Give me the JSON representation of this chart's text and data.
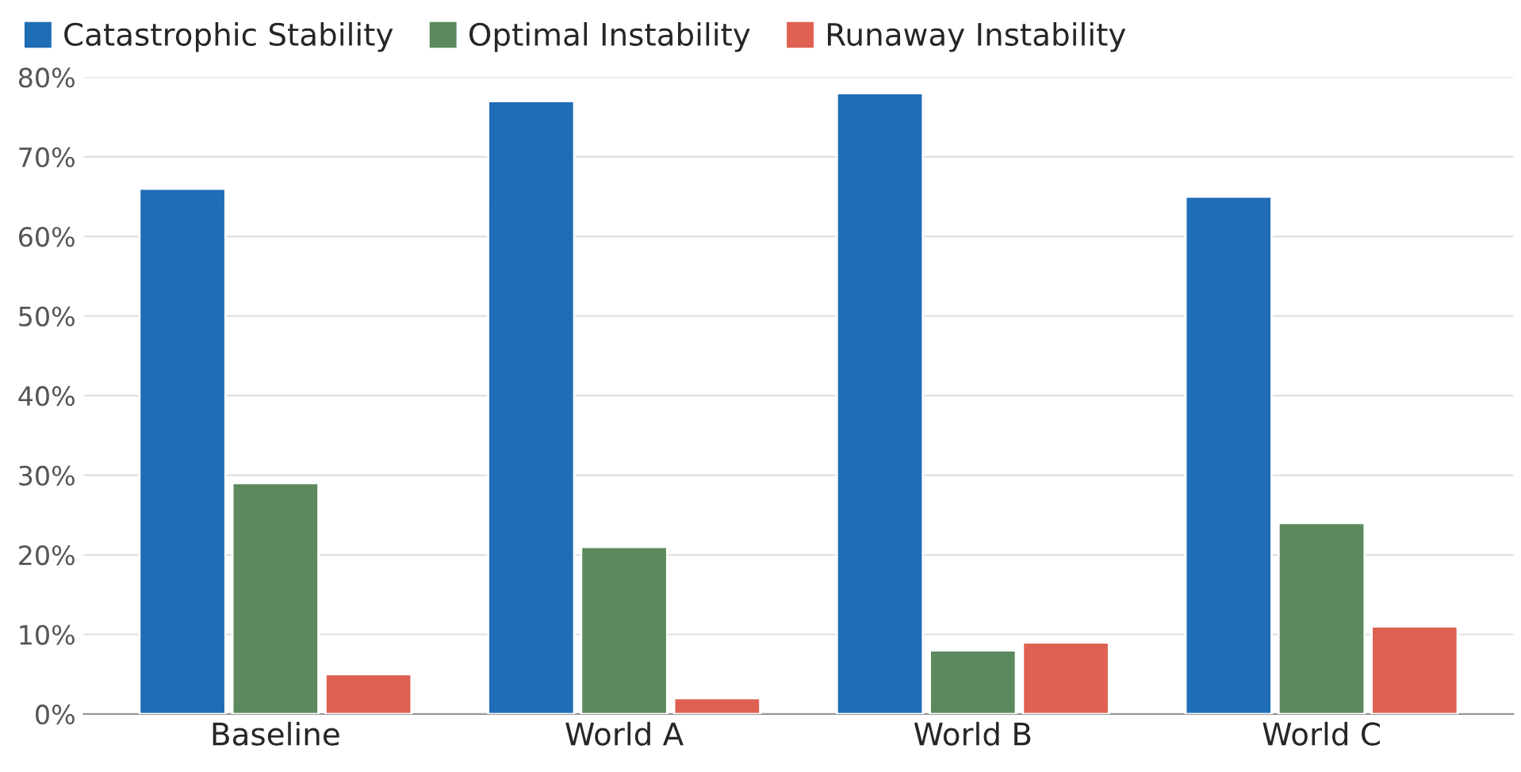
{
  "chart_data": {
    "type": "bar",
    "categories": [
      "Baseline",
      "World A",
      "World B",
      "World C"
    ],
    "series": [
      {
        "name": "Catastrophic Stability",
        "color": "#1f6db5",
        "values": [
          66,
          77,
          78,
          65
        ]
      },
      {
        "name": "Optimal Instability",
        "color": "#5c8a5e",
        "values": [
          29,
          21,
          8,
          24
        ]
      },
      {
        "name": "Runaway Instability",
        "color": "#e06152",
        "values": [
          5,
          2,
          9,
          11
        ]
      }
    ],
    "ylim": [
      0,
      80
    ],
    "yticks": [
      {
        "value": 0,
        "label": "0%"
      },
      {
        "value": 10,
        "label": "10%"
      },
      {
        "value": 20,
        "label": "20%"
      },
      {
        "value": 30,
        "label": "30%"
      },
      {
        "value": 40,
        "label": "40%"
      },
      {
        "value": 50,
        "label": "50%"
      },
      {
        "value": 60,
        "label": "60%"
      },
      {
        "value": 70,
        "label": "70%"
      },
      {
        "value": 80,
        "label": "80%"
      }
    ],
    "grid": "y",
    "legend": "top left"
  }
}
